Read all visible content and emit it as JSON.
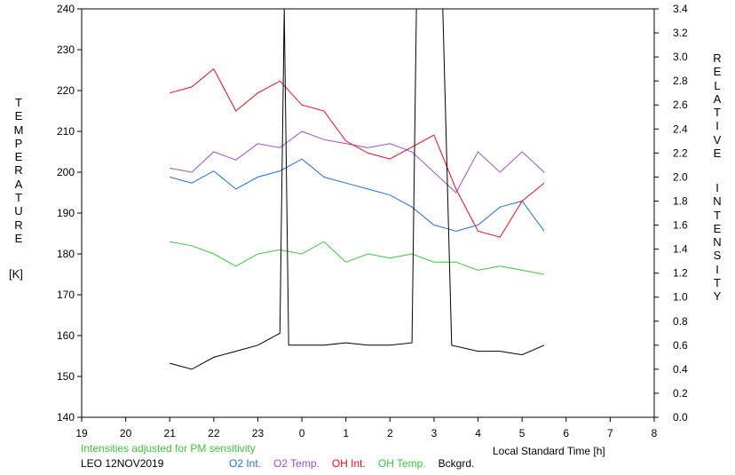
{
  "chart_data": {
    "type": "line",
    "left_axis": {
      "label_letters": [
        "T",
        "E",
        "M",
        "P",
        "E",
        "R",
        "A",
        "T",
        "U",
        "R",
        "E"
      ],
      "unit": "[K]",
      "range": [
        140,
        240
      ],
      "ticks": [
        140,
        150,
        160,
        170,
        180,
        190,
        200,
        210,
        220,
        230,
        240
      ]
    },
    "right_axis": {
      "label_letters_1": [
        "R",
        "E",
        "L",
        "A",
        "T",
        "I",
        "V",
        "E"
      ],
      "label_letters_2": [
        "I",
        "N",
        "T",
        "E",
        "N",
        "S",
        "I",
        "T",
        "Y"
      ],
      "range": [
        0.0,
        3.4
      ],
      "ticks": [
        "0.0",
        "0.2",
        "0.4",
        "0.6",
        "0.8",
        "1.0",
        "1.2",
        "1.4",
        "1.6",
        "1.8",
        "2.0",
        "2.2",
        "2.4",
        "2.6",
        "2.8",
        "3.0",
        "3.2",
        "3.4"
      ]
    },
    "x_axis": {
      "label": "Local Standard Time [h]",
      "range": [
        19,
        32
      ],
      "tick_labels": [
        "19",
        "20",
        "21",
        "22",
        "23",
        "0",
        "1",
        "2",
        "3",
        "4",
        "5",
        "6",
        "7",
        "8"
      ]
    },
    "series": [
      {
        "name": "O2 Int.",
        "color": "#1f6fd6",
        "axis": "right",
        "x": [
          21.0,
          21.5,
          22.0,
          22.5,
          23.0,
          23.5,
          24.0,
          24.5,
          25.0,
          25.5,
          26.0,
          26.5,
          27.0,
          27.5,
          28.0,
          28.5,
          29.0,
          29.5
        ],
        "y": [
          2.0,
          1.95,
          2.05,
          1.9,
          2.0,
          2.05,
          2.15,
          2.0,
          1.95,
          1.9,
          1.85,
          1.75,
          1.6,
          1.55,
          1.6,
          1.75,
          1.8,
          1.55
        ]
      },
      {
        "name": "O2 Temp.",
        "color": "#9a4fd0",
        "axis": "left",
        "x": [
          21.0,
          21.5,
          22.0,
          22.5,
          23.0,
          23.5,
          24.0,
          24.5,
          25.0,
          25.5,
          26.0,
          26.5,
          27.0,
          27.5,
          28.0,
          28.5,
          29.0,
          29.5
        ],
        "y": [
          201,
          200,
          205,
          203,
          207,
          206,
          210,
          208,
          207,
          206,
          207,
          205,
          200,
          195,
          205,
          200,
          205,
          200
        ]
      },
      {
        "name": "OH Int.",
        "color": "#e0101a",
        "axis": "right",
        "x": [
          21.0,
          21.5,
          22.0,
          22.5,
          23.0,
          23.5,
          24.0,
          24.5,
          25.0,
          25.5,
          26.0,
          26.5,
          27.0,
          27.5,
          28.0,
          28.5,
          29.0,
          29.5
        ],
        "y": [
          2.7,
          2.75,
          2.9,
          2.55,
          2.7,
          2.8,
          2.6,
          2.55,
          2.3,
          2.2,
          2.15,
          2.25,
          2.35,
          1.9,
          1.55,
          1.5,
          1.8,
          1.95
        ]
      },
      {
        "name": "OH Temp.",
        "color": "#3cc43c",
        "axis": "left",
        "x": [
          21.0,
          21.5,
          22.0,
          22.5,
          23.0,
          23.5,
          24.0,
          24.5,
          25.0,
          25.5,
          26.0,
          26.5,
          27.0,
          27.5,
          28.0,
          28.5,
          29.0,
          29.5
        ],
        "y": [
          183,
          182,
          180,
          177,
          180,
          181,
          180,
          183,
          178,
          180,
          179,
          180,
          178,
          178,
          176,
          177,
          176,
          175
        ]
      },
      {
        "name": "Bckgrd.",
        "color": "#000000",
        "axis": "right",
        "x": [
          21.0,
          21.5,
          22.0,
          22.5,
          23.0,
          23.5,
          23.6,
          23.7,
          24.0,
          24.5,
          25.0,
          25.5,
          26.0,
          26.5,
          26.6,
          26.7,
          26.9,
          27.1,
          27.2,
          27.4,
          28.0,
          28.5,
          29.0,
          29.5
        ],
        "y": [
          0.45,
          0.4,
          0.5,
          0.55,
          0.6,
          0.7,
          3.4,
          0.6,
          0.6,
          0.6,
          0.62,
          0.6,
          0.6,
          0.62,
          3.4,
          3.4,
          3.4,
          3.4,
          3.4,
          0.6,
          0.55,
          0.55,
          0.52,
          0.6
        ]
      }
    ],
    "grid": false,
    "legend": "bottom"
  },
  "notes": {
    "adjust": "Intensities adjusted for PM sensitivity",
    "site_date": "LEO 12NOV2019"
  },
  "legend_items": [
    {
      "label": "O2 Int.",
      "color": "#1f6fd6"
    },
    {
      "label": "O2 Temp.",
      "color": "#9a4fd0"
    },
    {
      "label": "OH Int.",
      "color": "#e0101a"
    },
    {
      "label": "OH Temp.",
      "color": "#3cc43c"
    },
    {
      "label": "Bckgrd.",
      "color": "#000000"
    }
  ]
}
